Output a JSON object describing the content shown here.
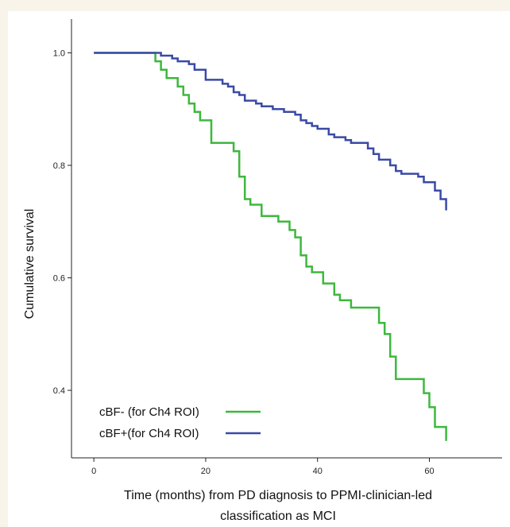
{
  "chart_data": {
    "type": "line",
    "subtype": "kaplan-meier-step",
    "title": "",
    "xlabel_line1": "Time (months) from PD diagnosis to PPMI-clinician-led",
    "xlabel_line2": "classification as MCI",
    "ylabel": "Cumulative survival",
    "xlim": [
      -4,
      73
    ],
    "ylim": [
      0.28,
      1.06
    ],
    "xticks": [
      0,
      20,
      40,
      60
    ],
    "yticks": [
      0.4,
      0.6,
      0.8,
      1.0
    ],
    "ytick_labels": [
      "0.4",
      "0.6",
      "0.8",
      "1.0"
    ],
    "grid": false,
    "legend_position": "bottom-left",
    "series": [
      {
        "name": "cBF- (for Ch4 ROI)",
        "color": "#3db83d",
        "x": [
          0,
          10,
          11,
          12,
          13,
          15,
          16,
          17,
          18,
          19,
          21,
          25,
          26,
          27,
          28,
          30,
          33,
          35,
          36,
          37,
          38,
          39,
          41,
          43,
          44,
          46,
          48,
          51,
          52,
          53,
          54,
          58,
          59,
          60,
          61,
          63
        ],
        "y": [
          1.0,
          1.0,
          0.985,
          0.97,
          0.955,
          0.94,
          0.925,
          0.91,
          0.895,
          0.88,
          0.84,
          0.825,
          0.78,
          0.74,
          0.73,
          0.71,
          0.7,
          0.685,
          0.672,
          0.64,
          0.62,
          0.61,
          0.59,
          0.57,
          0.56,
          0.547,
          0.547,
          0.52,
          0.5,
          0.46,
          0.42,
          0.42,
          0.395,
          0.37,
          0.335,
          0.31
        ]
      },
      {
        "name": "cBF+(for Ch4 ROI)",
        "color": "#3a4aa6",
        "x": [
          0,
          10,
          12,
          14,
          15,
          17,
          18,
          20,
          23,
          24,
          25,
          26,
          27,
          29,
          30,
          32,
          34,
          36,
          37,
          38,
          39,
          40,
          42,
          43,
          45,
          46,
          49,
          50,
          51,
          53,
          54,
          55,
          57,
          58,
          59,
          61,
          62,
          63
        ],
        "y": [
          1.0,
          1.0,
          0.995,
          0.99,
          0.985,
          0.98,
          0.97,
          0.952,
          0.945,
          0.94,
          0.93,
          0.925,
          0.915,
          0.91,
          0.905,
          0.9,
          0.895,
          0.89,
          0.88,
          0.875,
          0.87,
          0.865,
          0.855,
          0.85,
          0.845,
          0.84,
          0.83,
          0.82,
          0.81,
          0.8,
          0.79,
          0.785,
          0.785,
          0.78,
          0.77,
          0.755,
          0.74,
          0.72
        ]
      }
    ]
  }
}
